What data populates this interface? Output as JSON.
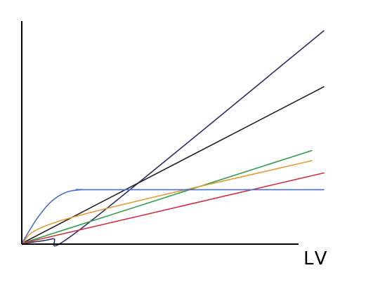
{
  "chart_data": {
    "type": "line",
    "title": "",
    "xlabel": "LV",
    "ylabel": "",
    "xlim": [
      0,
      100
    ],
    "ylim": [
      0,
      100
    ],
    "grid": false,
    "legend": "none",
    "series": [
      {
        "color": "#2d2d6e",
        "x": [
          0,
          10,
          20,
          100
        ],
        "y": [
          0,
          2,
          7,
          95
        ]
      },
      {
        "color": "#222222",
        "x": [
          0,
          100
        ],
        "y": [
          0,
          70
        ]
      },
      {
        "color": "#2e9e4a",
        "x": [
          0,
          96
        ],
        "y": [
          0,
          41.5
        ]
      },
      {
        "color": "#e89a2a",
        "x": [
          0,
          15,
          96
        ],
        "y": [
          0,
          11,
          37
        ]
      },
      {
        "color": "#d0333a",
        "x": [
          0,
          100
        ],
        "y": [
          0,
          31.5
        ]
      },
      {
        "color": "#4a6fd0",
        "x": [
          0,
          5,
          10,
          15,
          20,
          25,
          100
        ],
        "y": [
          0,
          11,
          19,
          23,
          24,
          24,
          24
        ]
      }
    ]
  }
}
